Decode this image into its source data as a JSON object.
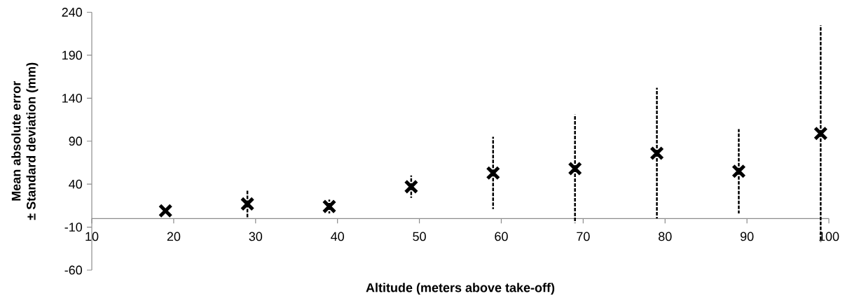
{
  "chart_data": {
    "type": "scatter",
    "xlabel": "Altitude (meters above take-off)",
    "ylabel": "Mean absolute error\n± Standard deviation (mm)",
    "x": [
      19,
      29,
      39,
      49,
      59,
      69,
      79,
      89,
      99
    ],
    "values": [
      9,
      17,
      14,
      37,
      53,
      58,
      76,
      55,
      99
    ],
    "errors": [
      null,
      16,
      8,
      13,
      42,
      63,
      76,
      49,
      126
    ],
    "color": "#000000",
    "marker": "cross",
    "xlim": [
      10,
      100
    ],
    "xticks": [
      10,
      20,
      30,
      40,
      50,
      60,
      70,
      80,
      90,
      100
    ],
    "ylim": [
      -60,
      240
    ],
    "yticks": [
      -60,
      -10,
      40,
      90,
      140,
      190,
      240
    ],
    "grid": false
  }
}
